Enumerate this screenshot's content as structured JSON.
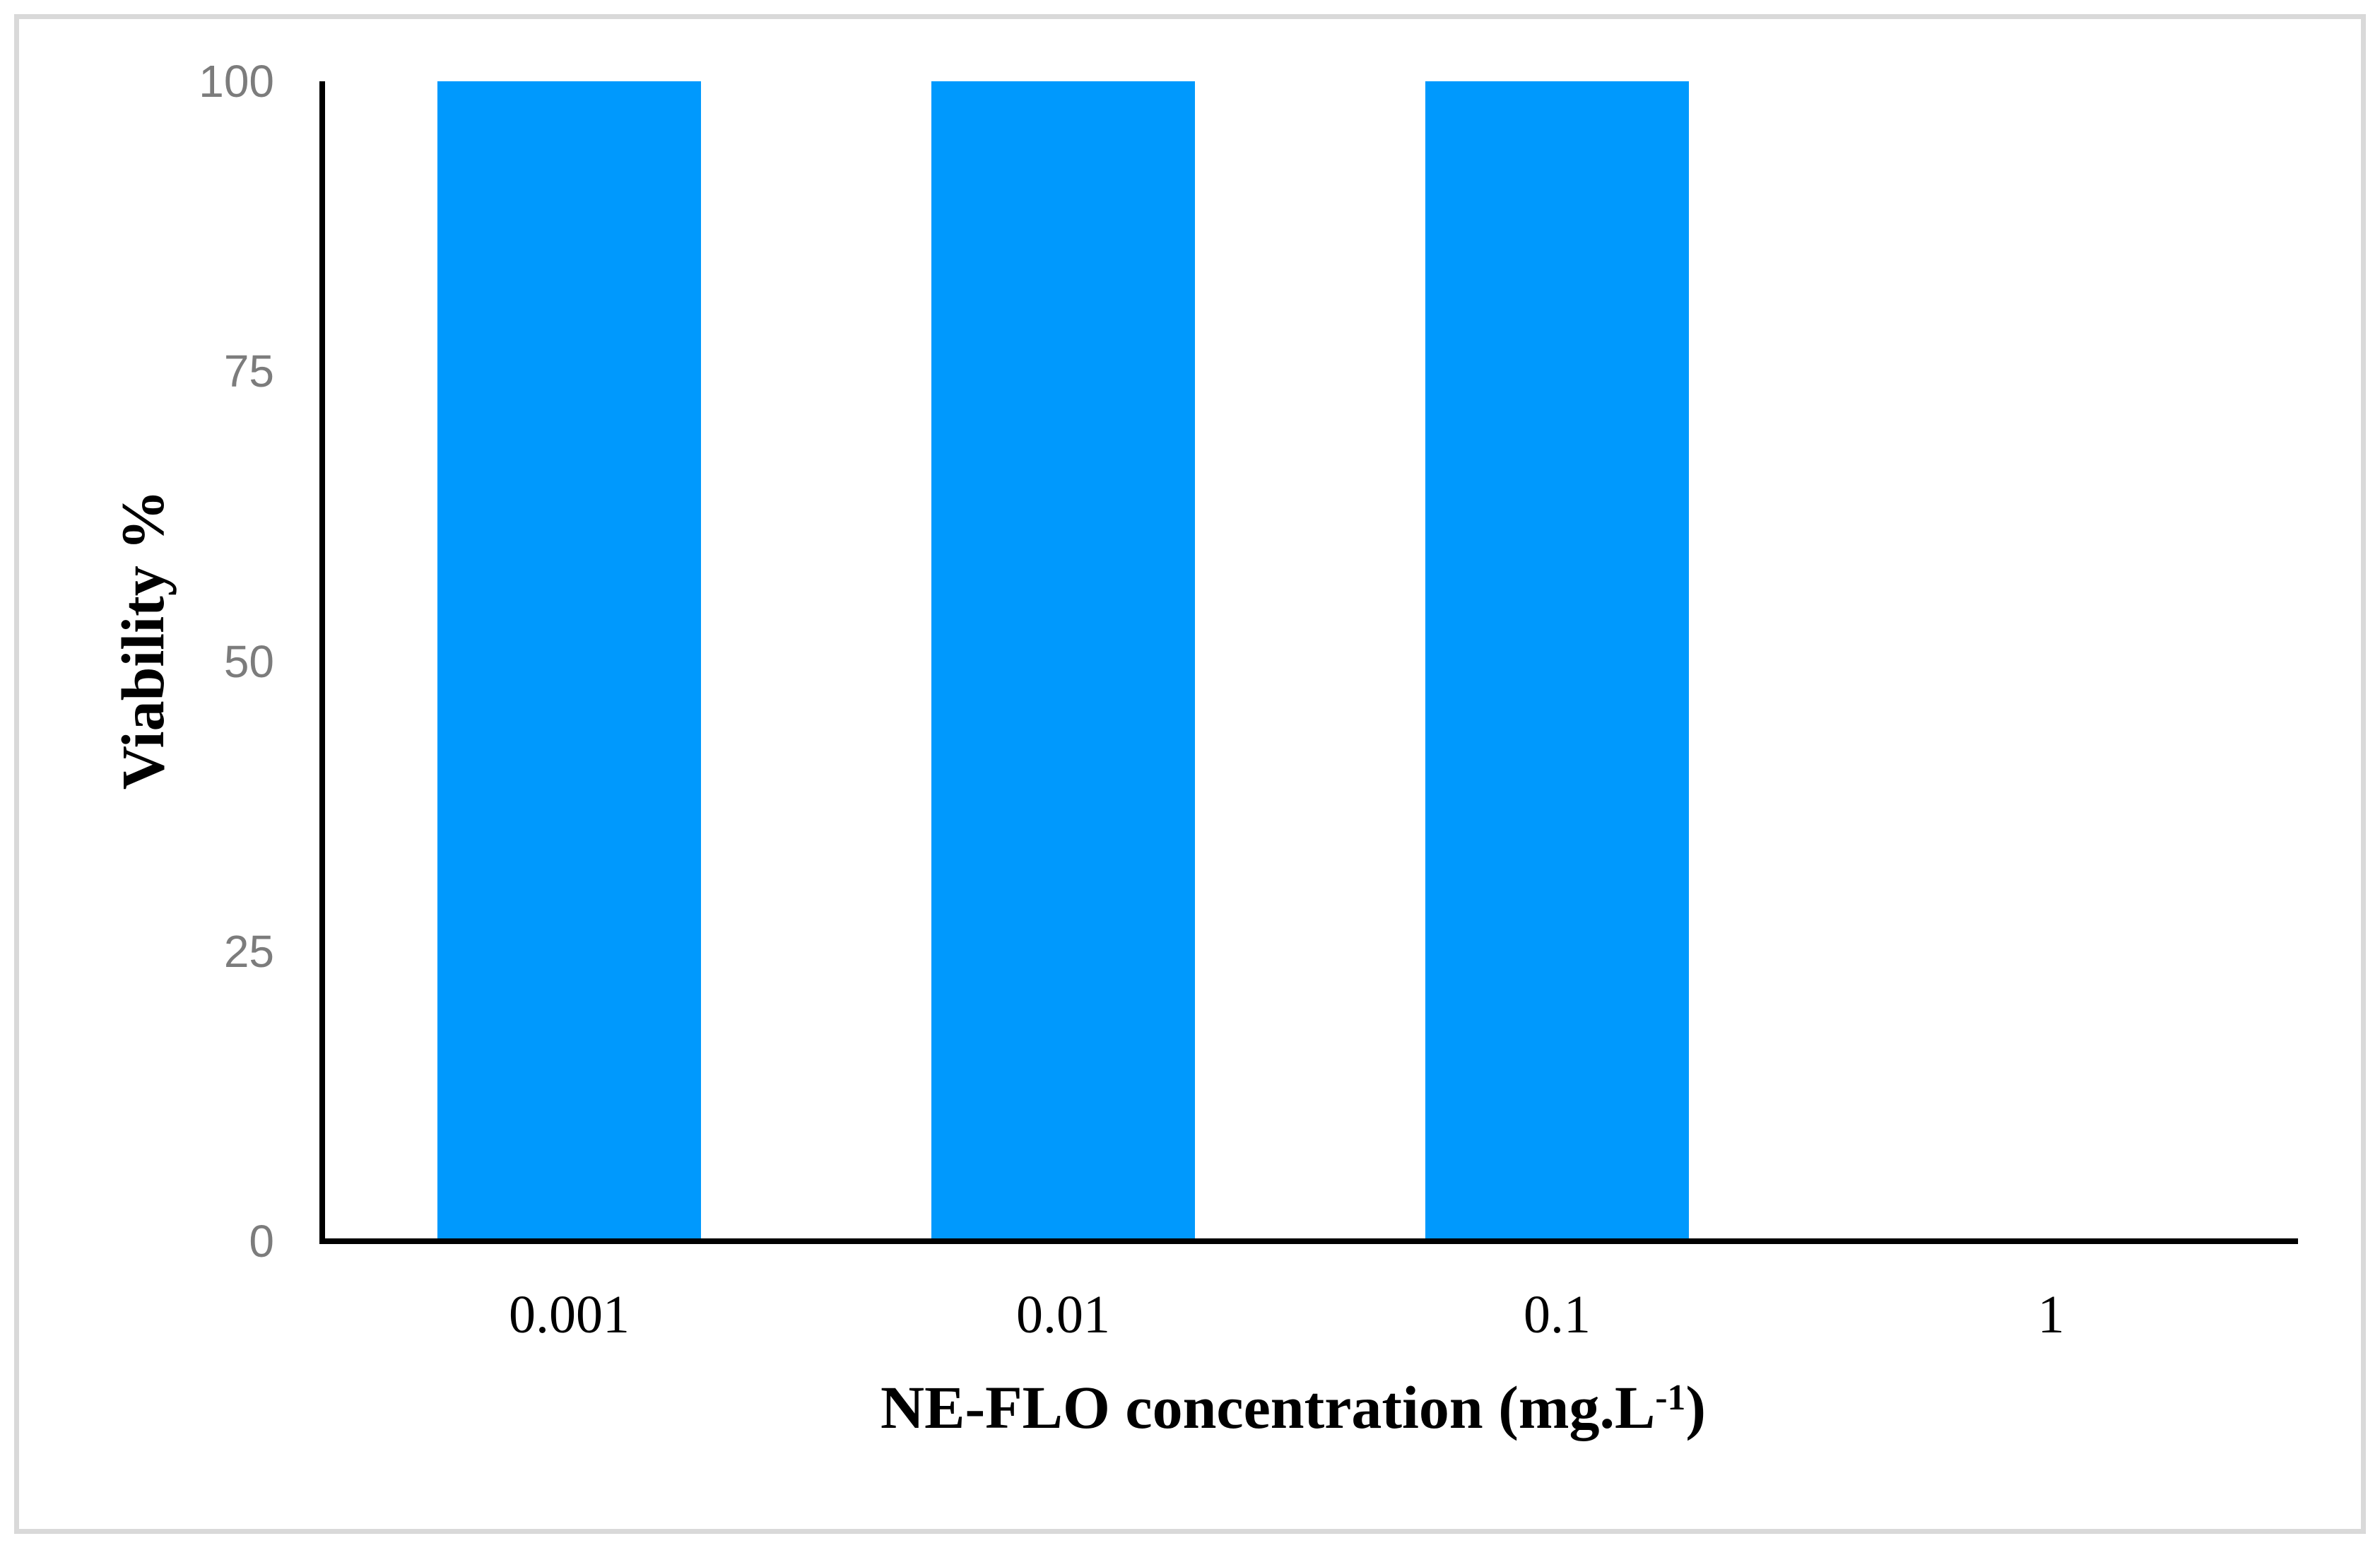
{
  "chart_data": {
    "type": "bar",
    "title": "",
    "categories": [
      "0.001",
      "0.01",
      "0.1",
      "1"
    ],
    "values": [
      100,
      100,
      100,
      0
    ],
    "ylabel": "Viability %",
    "xlabel": {
      "text": "NE-FLO concentration (mg.L⁻¹)",
      "pre": "NE-FLO concentration (mg.L",
      "sup": "-1",
      "post": ")"
    },
    "yticks": [
      0,
      25,
      50,
      75,
      100
    ],
    "ylim": [
      0,
      100
    ],
    "grid": false,
    "legend": "none",
    "colors": {
      "bar": "#0099FD",
      "axis": "#000000",
      "ytick_label": "#7C7C7C",
      "xtick_label": "#000000",
      "frame": "#D9D9D9",
      "background": "#FFFFFF"
    }
  }
}
